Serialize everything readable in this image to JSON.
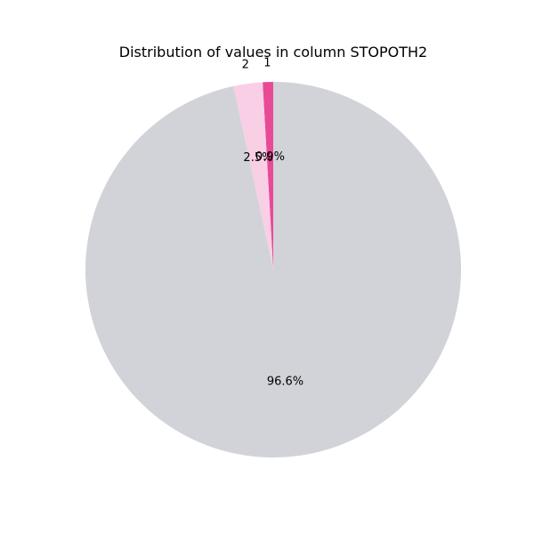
{
  "chart_data": {
    "type": "pie",
    "title": "Distribution of values in column STOPOTH2",
    "start_angle_deg": 90,
    "direction": "counterclockwise",
    "slices": [
      {
        "label": "1",
        "value": 0.9,
        "pct_label": "0.9%",
        "color": "#e84a96"
      },
      {
        "label": "2",
        "value": 2.5,
        "pct_label": "2.5%",
        "color": "#f9cfe6"
      },
      {
        "label": "",
        "value": 96.6,
        "pct_label": "96.6%",
        "color": "#d1d3d9"
      }
    ]
  }
}
